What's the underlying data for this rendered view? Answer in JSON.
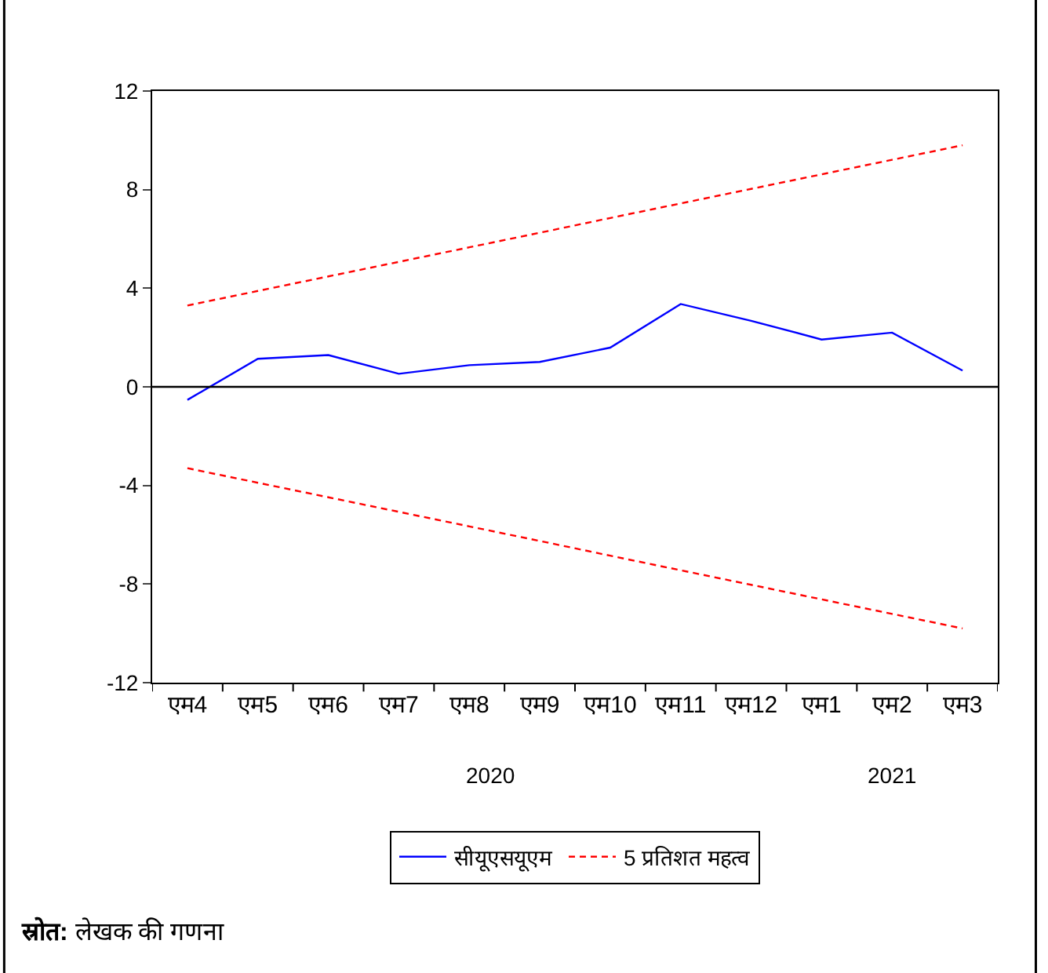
{
  "chart_data": {
    "type": "line",
    "categories": [
      "एम4",
      "एम5",
      "एम6",
      "एम7",
      "एम8",
      "एम9",
      "एम10",
      "एम11",
      "एम12",
      "एम1",
      "एम2",
      "एम3"
    ],
    "series": [
      {
        "name": "सीयूएसयूएम",
        "color": "#0000ff",
        "line_style": "solid",
        "values": [
          -0.53,
          1.14,
          1.29,
          0.53,
          0.88,
          1.01,
          1.59,
          3.36,
          2.68,
          1.92,
          2.2,
          0.66
        ]
      },
      {
        "name": "5 प्रतिशत महत्व",
        "color": "#ff0000",
        "line_style": "dashed",
        "values": [
          3.3,
          3.89,
          4.48,
          5.07,
          5.66,
          6.25,
          6.85,
          7.44,
          8.03,
          8.62,
          9.21,
          9.8
        ]
      },
      {
        "color": "#ff0000",
        "line_style": "dashed",
        "values": [
          -3.3,
          -3.89,
          -4.48,
          -5.07,
          -5.66,
          -6.25,
          -6.85,
          -7.44,
          -8.03,
          -8.62,
          -9.21,
          -9.8
        ]
      }
    ],
    "ylim": [
      -12,
      12
    ],
    "yticks": [
      -12,
      -8,
      -4,
      0,
      4,
      8,
      12
    ],
    "ref_lines": [
      {
        "axis": "y",
        "value": 0,
        "color": "#000000"
      }
    ],
    "legend": "bottom",
    "marker": "none",
    "annotations": [
      "2020",
      "2021",
      "स्रोत: लेखक की गणना"
    ]
  }
}
